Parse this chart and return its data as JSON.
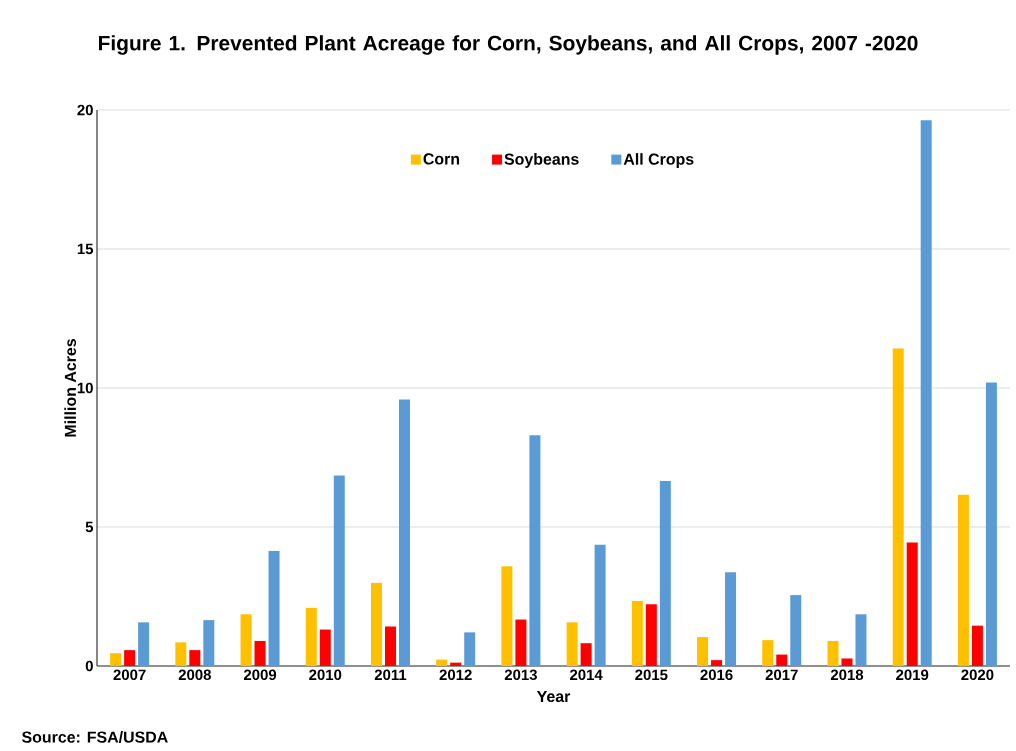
{
  "chart_data": {
    "type": "bar",
    "title": "Figure 1. Prevented Plant Acreage for Corn, Soybeans, and All Crops, 2007 -2020",
    "xlabel": "Year",
    "ylabel": "Million Acres",
    "categories": [
      "2007",
      "2008",
      "2009",
      "2010",
      "2011",
      "2012",
      "2013",
      "2014",
      "2015",
      "2016",
      "2017",
      "2018",
      "2019",
      "2020"
    ],
    "series": [
      {
        "name": "Corn",
        "color": "#ffc000",
        "values": [
          0.46,
          0.85,
          1.86,
          2.09,
          2.99,
          0.23,
          3.59,
          1.57,
          2.34,
          1.04,
          0.93,
          0.9,
          11.42,
          6.16
        ]
      },
      {
        "name": "Soybeans",
        "color": "#ff0000",
        "values": [
          0.57,
          0.57,
          0.9,
          1.31,
          1.42,
          0.12,
          1.67,
          0.82,
          2.22,
          0.21,
          0.41,
          0.27,
          4.44,
          1.45
        ]
      },
      {
        "name": "All Crops",
        "color": "#5b9bd5",
        "values": [
          1.57,
          1.65,
          4.14,
          6.85,
          9.59,
          1.21,
          8.3,
          4.36,
          6.65,
          3.37,
          2.55,
          1.86,
          19.63,
          10.2
        ]
      }
    ],
    "ylim": [
      0,
      20
    ],
    "yticks": [
      0,
      5,
      10,
      15,
      20
    ],
    "grid": "y",
    "legend": "top",
    "annotations": [
      "Source: FSA/USDA"
    ]
  }
}
